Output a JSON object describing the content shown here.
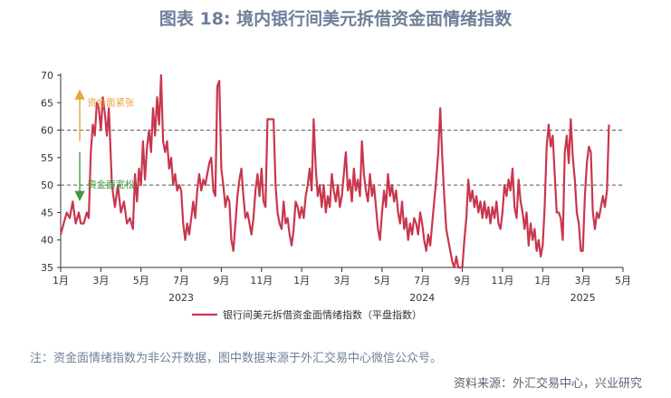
{
  "title": "图表 18: 境内银行间美元拆借资金面情绪指数",
  "note": "注：资金面情绪指数为非公开数据，图中数据来源于外汇交易中心微信公众号。",
  "source": "资料来源：外汇交易中心，兴业研究",
  "colors": {
    "line": "#c8374d",
    "up_arrow": "#e8a33a",
    "down_arrow": "#3f9a3a",
    "axis": "#333333",
    "ref": "#555555"
  },
  "chart_data": {
    "type": "line",
    "title": "图表 18: 境内银行间美元拆借资金面情绪指数",
    "ylim": [
      35,
      70
    ],
    "yticks": [
      35,
      40,
      45,
      50,
      55,
      60,
      65,
      70
    ],
    "x_range": [
      0,
      28
    ],
    "x_ticks": [
      {
        "x": 0,
        "label": "1月"
      },
      {
        "x": 2,
        "label": "3月"
      },
      {
        "x": 4,
        "label": "5月"
      },
      {
        "x": 6,
        "label": "7月"
      },
      {
        "x": 8,
        "label": "9月"
      },
      {
        "x": 10,
        "label": "11月"
      },
      {
        "x": 12,
        "label": "1月"
      },
      {
        "x": 14,
        "label": "3月"
      },
      {
        "x": 16,
        "label": "5月"
      },
      {
        "x": 18,
        "label": "7月"
      },
      {
        "x": 20,
        "label": "9月"
      },
      {
        "x": 22,
        "label": "11月"
      },
      {
        "x": 24,
        "label": "1月"
      },
      {
        "x": 26,
        "label": "3月"
      },
      {
        "x": 28,
        "label": "5月"
      }
    ],
    "year_labels": [
      {
        "x": 6,
        "label": "2023"
      },
      {
        "x": 18,
        "label": "2024"
      },
      {
        "x": 26,
        "label": "2025"
      }
    ],
    "ref_lines": [
      60,
      50
    ],
    "annotations": {
      "tight": "资金面紧张",
      "loose": "资金面宽松"
    },
    "legend_position": "bottom",
    "series": [
      {
        "name": "银行间美元拆借资金面情绪指数（平盘指数）",
        "points": [
          [
            0.0,
            41
          ],
          [
            0.15,
            43
          ],
          [
            0.3,
            45
          ],
          [
            0.45,
            44
          ],
          [
            0.6,
            47
          ],
          [
            0.75,
            43
          ],
          [
            0.9,
            45
          ],
          [
            1.0,
            43
          ],
          [
            1.15,
            43
          ],
          [
            1.3,
            45
          ],
          [
            1.4,
            44
          ],
          [
            1.5,
            56
          ],
          [
            1.6,
            61
          ],
          [
            1.7,
            59
          ],
          [
            1.8,
            65
          ],
          [
            1.9,
            64
          ],
          [
            2.0,
            60
          ],
          [
            2.1,
            66
          ],
          [
            2.2,
            63
          ],
          [
            2.3,
            59
          ],
          [
            2.4,
            64
          ],
          [
            2.55,
            50
          ],
          [
            2.7,
            46
          ],
          [
            2.85,
            50
          ],
          [
            3.0,
            45
          ],
          [
            3.15,
            47
          ],
          [
            3.3,
            43
          ],
          [
            3.45,
            44
          ],
          [
            3.6,
            42
          ],
          [
            3.7,
            52
          ],
          [
            3.8,
            47
          ],
          [
            3.9,
            53
          ],
          [
            4.0,
            50
          ],
          [
            4.1,
            58
          ],
          [
            4.2,
            51
          ],
          [
            4.3,
            57
          ],
          [
            4.4,
            60
          ],
          [
            4.5,
            56
          ],
          [
            4.6,
            64
          ],
          [
            4.7,
            59
          ],
          [
            4.8,
            66
          ],
          [
            4.9,
            61
          ],
          [
            5.0,
            70
          ],
          [
            5.1,
            58
          ],
          [
            5.2,
            56
          ],
          [
            5.3,
            58
          ],
          [
            5.4,
            53
          ],
          [
            5.5,
            55
          ],
          [
            5.6,
            50
          ],
          [
            5.7,
            52
          ],
          [
            5.8,
            49
          ],
          [
            5.9,
            50
          ],
          [
            6.0,
            49
          ],
          [
            6.1,
            43
          ],
          [
            6.2,
            40
          ],
          [
            6.3,
            43
          ],
          [
            6.4,
            41
          ],
          [
            6.5,
            44
          ],
          [
            6.6,
            47
          ],
          [
            6.7,
            44
          ],
          [
            6.8,
            49
          ],
          [
            6.9,
            52
          ],
          [
            7.0,
            49
          ],
          [
            7.1,
            51
          ],
          [
            7.2,
            50
          ],
          [
            7.3,
            52
          ],
          [
            7.4,
            54
          ],
          [
            7.5,
            55
          ],
          [
            7.6,
            49
          ],
          [
            7.7,
            48
          ],
          [
            7.8,
            68
          ],
          [
            7.9,
            69
          ],
          [
            8.0,
            53
          ],
          [
            8.1,
            50
          ],
          [
            8.2,
            46
          ],
          [
            8.3,
            48
          ],
          [
            8.4,
            47
          ],
          [
            8.5,
            40
          ],
          [
            8.6,
            38
          ],
          [
            8.7,
            43
          ],
          [
            8.8,
            48
          ],
          [
            8.9,
            51
          ],
          [
            9.0,
            53
          ],
          [
            9.1,
            48
          ],
          [
            9.2,
            44
          ],
          [
            9.3,
            45
          ],
          [
            9.4,
            43
          ],
          [
            9.5,
            41
          ],
          [
            9.6,
            44
          ],
          [
            9.7,
            49
          ],
          [
            9.8,
            52
          ],
          [
            9.9,
            48
          ],
          [
            10.0,
            53
          ],
          [
            10.1,
            47
          ],
          [
            10.2,
            46
          ],
          [
            10.3,
            62
          ],
          [
            10.4,
            62
          ],
          [
            10.5,
            62
          ],
          [
            10.6,
            62
          ],
          [
            10.7,
            50
          ],
          [
            10.8,
            45
          ],
          [
            10.9,
            43
          ],
          [
            11.0,
            42
          ],
          [
            11.1,
            47
          ],
          [
            11.2,
            43
          ],
          [
            11.3,
            44
          ],
          [
            11.4,
            41
          ],
          [
            11.5,
            39
          ],
          [
            11.6,
            42
          ],
          [
            11.7,
            47
          ],
          [
            11.8,
            46
          ],
          [
            11.9,
            44
          ],
          [
            12.0,
            46
          ],
          [
            12.1,
            44
          ],
          [
            12.2,
            48
          ],
          [
            12.3,
            50
          ],
          [
            12.4,
            53
          ],
          [
            12.5,
            49
          ],
          [
            12.6,
            62
          ],
          [
            12.7,
            53
          ],
          [
            12.8,
            48
          ],
          [
            12.9,
            50
          ],
          [
            13.0,
            46
          ],
          [
            13.1,
            50
          ],
          [
            13.2,
            45
          ],
          [
            13.3,
            48
          ],
          [
            13.4,
            46
          ],
          [
            13.5,
            52
          ],
          [
            13.6,
            49
          ],
          [
            13.7,
            47
          ],
          [
            13.8,
            50
          ],
          [
            13.9,
            46
          ],
          [
            14.0,
            48
          ],
          [
            14.1,
            52
          ],
          [
            14.2,
            56
          ],
          [
            14.3,
            49
          ],
          [
            14.4,
            51
          ],
          [
            14.5,
            47
          ],
          [
            14.6,
            53
          ],
          [
            14.7,
            49
          ],
          [
            14.8,
            51
          ],
          [
            14.9,
            48
          ],
          [
            15.0,
            58
          ],
          [
            15.1,
            52
          ],
          [
            15.2,
            49
          ],
          [
            15.3,
            47
          ],
          [
            15.4,
            52
          ],
          [
            15.5,
            48
          ],
          [
            15.6,
            50
          ],
          [
            15.7,
            46
          ],
          [
            15.8,
            42
          ],
          [
            15.9,
            40
          ],
          [
            16.0,
            45
          ],
          [
            16.1,
            49
          ],
          [
            16.2,
            46
          ],
          [
            16.3,
            52
          ],
          [
            16.4,
            48
          ],
          [
            16.5,
            50
          ],
          [
            16.6,
            47
          ],
          [
            16.7,
            49
          ],
          [
            16.8,
            45
          ],
          [
            16.9,
            43
          ],
          [
            17.0,
            47
          ],
          [
            17.1,
            42
          ],
          [
            17.2,
            44
          ],
          [
            17.3,
            40
          ],
          [
            17.4,
            43
          ],
          [
            17.5,
            41
          ],
          [
            17.6,
            44
          ],
          [
            17.7,
            43
          ],
          [
            17.8,
            41
          ],
          [
            17.9,
            45
          ],
          [
            18.0,
            43
          ],
          [
            18.1,
            40
          ],
          [
            18.2,
            38
          ],
          [
            18.3,
            41
          ],
          [
            18.4,
            39
          ],
          [
            18.5,
            43
          ],
          [
            18.6,
            47
          ],
          [
            18.7,
            51
          ],
          [
            18.8,
            56
          ],
          [
            18.9,
            64
          ],
          [
            19.0,
            55
          ],
          [
            19.1,
            48
          ],
          [
            19.2,
            42
          ],
          [
            19.3,
            40
          ],
          [
            19.4,
            38
          ],
          [
            19.5,
            36
          ],
          [
            19.6,
            35
          ],
          [
            19.7,
            37
          ],
          [
            19.8,
            35
          ],
          [
            19.9,
            35
          ],
          [
            20.0,
            35
          ],
          [
            20.1,
            40
          ],
          [
            20.2,
            44
          ],
          [
            20.3,
            51
          ],
          [
            20.4,
            47
          ],
          [
            20.5,
            49
          ],
          [
            20.6,
            46
          ],
          [
            20.7,
            48
          ],
          [
            20.8,
            45
          ],
          [
            20.9,
            47
          ],
          [
            21.0,
            44
          ],
          [
            21.1,
            47
          ],
          [
            21.2,
            44
          ],
          [
            21.3,
            46
          ],
          [
            21.4,
            43
          ],
          [
            21.5,
            46
          ],
          [
            21.6,
            44
          ],
          [
            21.7,
            47
          ],
          [
            21.8,
            43
          ],
          [
            21.9,
            42
          ],
          [
            22.0,
            45
          ],
          [
            22.1,
            50
          ],
          [
            22.2,
            48
          ],
          [
            22.3,
            51
          ],
          [
            22.4,
            49
          ],
          [
            22.5,
            53
          ],
          [
            22.6,
            46
          ],
          [
            22.7,
            44
          ],
          [
            22.8,
            51
          ],
          [
            22.9,
            47
          ],
          [
            23.0,
            45
          ],
          [
            23.1,
            42
          ],
          [
            23.2,
            45
          ],
          [
            23.3,
            39
          ],
          [
            23.4,
            43
          ],
          [
            23.5,
            40
          ],
          [
            23.6,
            42
          ],
          [
            23.7,
            38
          ],
          [
            23.8,
            40
          ],
          [
            23.9,
            37
          ],
          [
            24.0,
            39
          ],
          [
            24.1,
            46
          ],
          [
            24.2,
            57
          ],
          [
            24.3,
            61
          ],
          [
            24.4,
            57
          ],
          [
            24.5,
            59
          ],
          [
            24.6,
            52
          ],
          [
            24.7,
            45
          ],
          [
            24.8,
            45
          ],
          [
            24.9,
            44
          ],
          [
            25.0,
            40
          ],
          [
            25.1,
            56
          ],
          [
            25.2,
            59
          ],
          [
            25.3,
            54
          ],
          [
            25.4,
            62
          ],
          [
            25.5,
            55
          ],
          [
            25.6,
            51
          ],
          [
            25.7,
            45
          ],
          [
            25.8,
            43
          ],
          [
            25.9,
            38
          ],
          [
            26.0,
            38
          ],
          [
            26.1,
            48
          ],
          [
            26.2,
            54
          ],
          [
            26.3,
            57
          ],
          [
            26.4,
            56
          ],
          [
            26.5,
            45
          ],
          [
            26.6,
            42
          ],
          [
            26.7,
            45
          ],
          [
            26.8,
            44
          ],
          [
            26.9,
            46
          ],
          [
            27.0,
            48
          ],
          [
            27.1,
            46
          ],
          [
            27.2,
            49
          ],
          [
            27.3,
            61
          ]
        ]
      }
    ]
  }
}
